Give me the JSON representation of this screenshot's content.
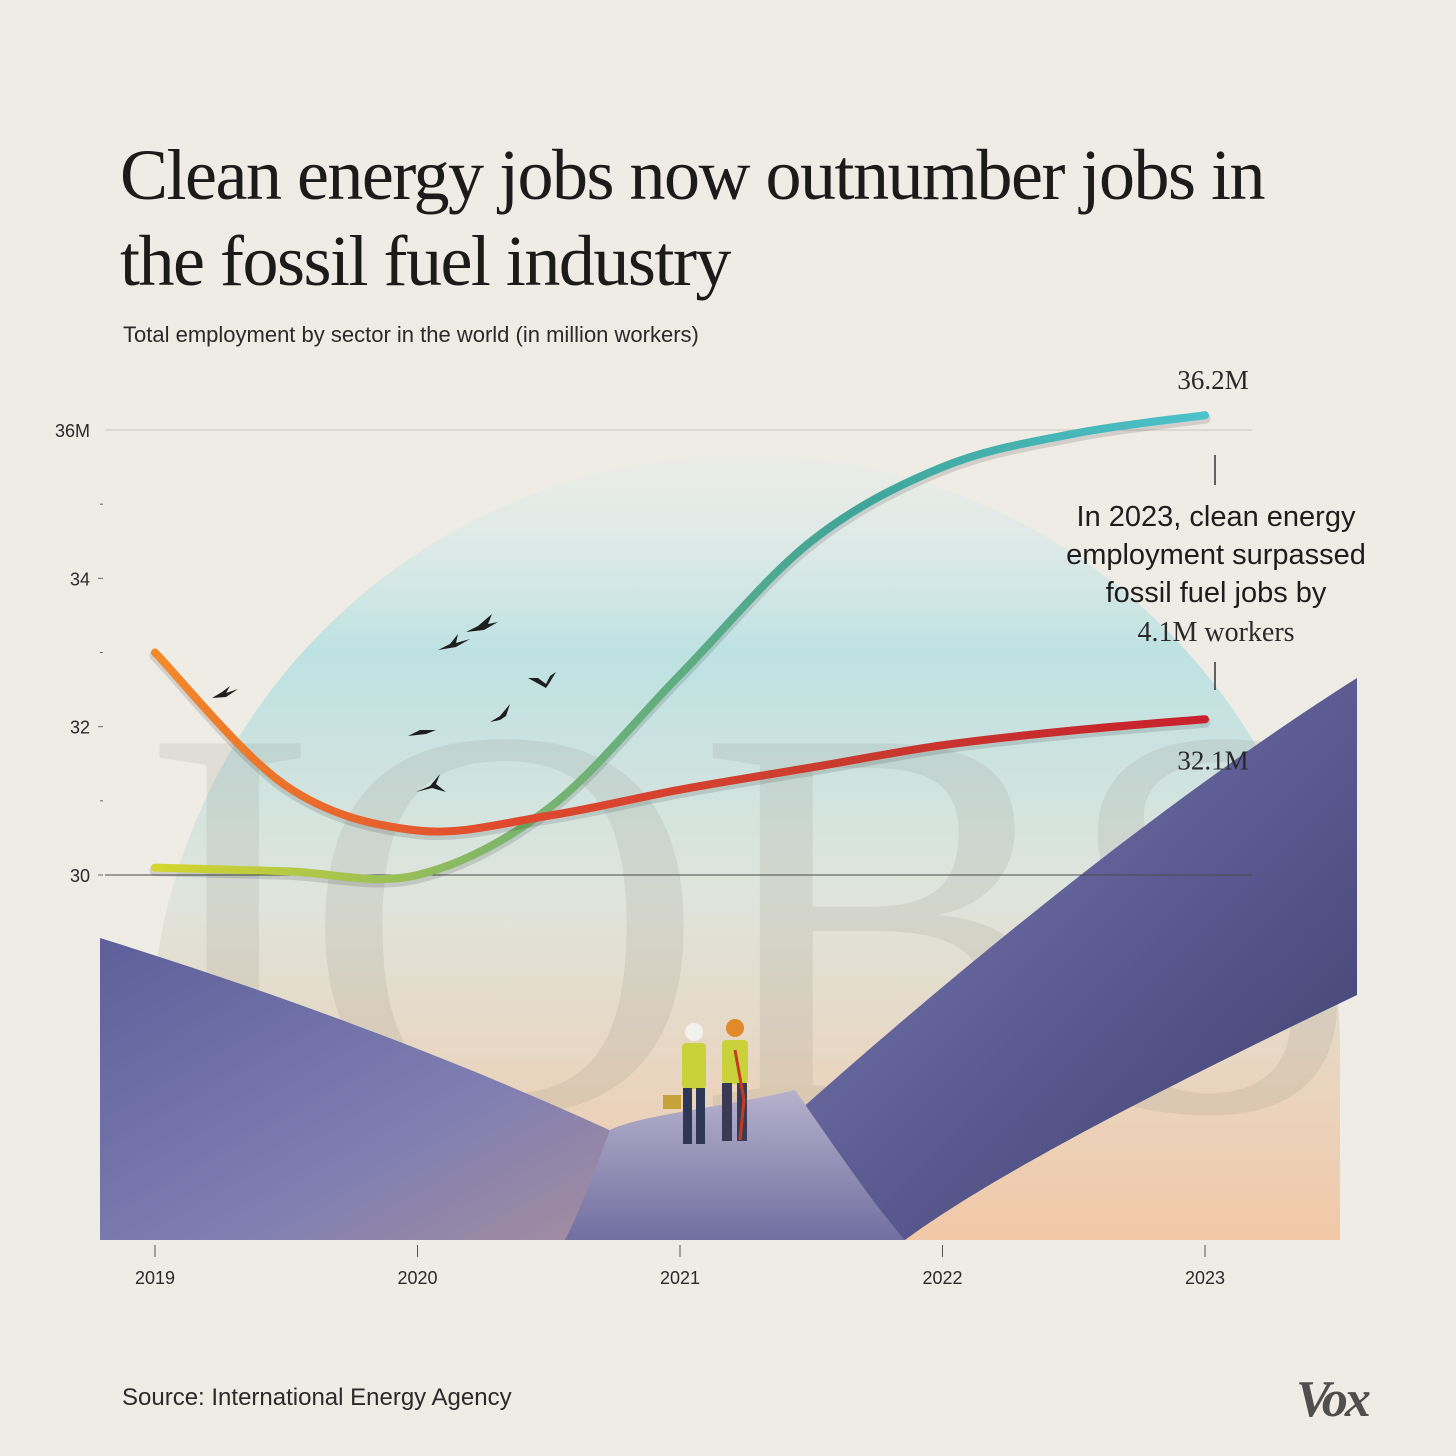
{
  "title": "Clean energy jobs now outnumber jobs in the fossil fuel industry",
  "subtitle": "Total employment by sector  in the world (in million workers)",
  "annotation": {
    "text": "In 2023, clean energy employment surpassed fossil fuel jobs by",
    "highlight": "4.1M workers"
  },
  "source": "Source: International Energy Agency",
  "logo": "Vox",
  "background_word": "JOBS",
  "chart_data": {
    "type": "line",
    "x": [
      2019,
      2020,
      2021,
      2022,
      2023
    ],
    "xticks": [
      "2019",
      "2020",
      "2021",
      "2022",
      "2023"
    ],
    "yticks": [
      {
        "value": 36,
        "label": "36M"
      },
      {
        "value": 34,
        "label": "34"
      },
      {
        "value": 32,
        "label": "32"
      },
      {
        "value": 30,
        "label": "30"
      }
    ],
    "ylim": [
      30,
      36
    ],
    "series": [
      {
        "key": "clean",
        "x": [
          2019,
          2019.5,
          2020,
          2020.5,
          2021,
          2021.5,
          2022,
          2022.5,
          2023
        ],
        "values": [
          30.1,
          30.05,
          30.0,
          30.9,
          32.7,
          34.5,
          35.5,
          35.95,
          36.2
        ],
        "end_label": "36.2M",
        "colors": [
          "#d6d62c",
          "#7eb56a",
          "#3fa59a",
          "#4cc2cc"
        ]
      },
      {
        "key": "fossil",
        "x": [
          2019,
          2019.5,
          2020,
          2020.5,
          2021,
          2021.5,
          2022,
          2022.5,
          2023
        ],
        "values": [
          33.0,
          31.2,
          30.6,
          30.8,
          31.15,
          31.45,
          31.75,
          31.95,
          32.1
        ],
        "end_label": "32.1M",
        "colors": [
          "#f28a2a",
          "#e0492f",
          "#c93a2e",
          "#c8202c"
        ]
      }
    ],
    "grid": true,
    "legend": "none"
  }
}
